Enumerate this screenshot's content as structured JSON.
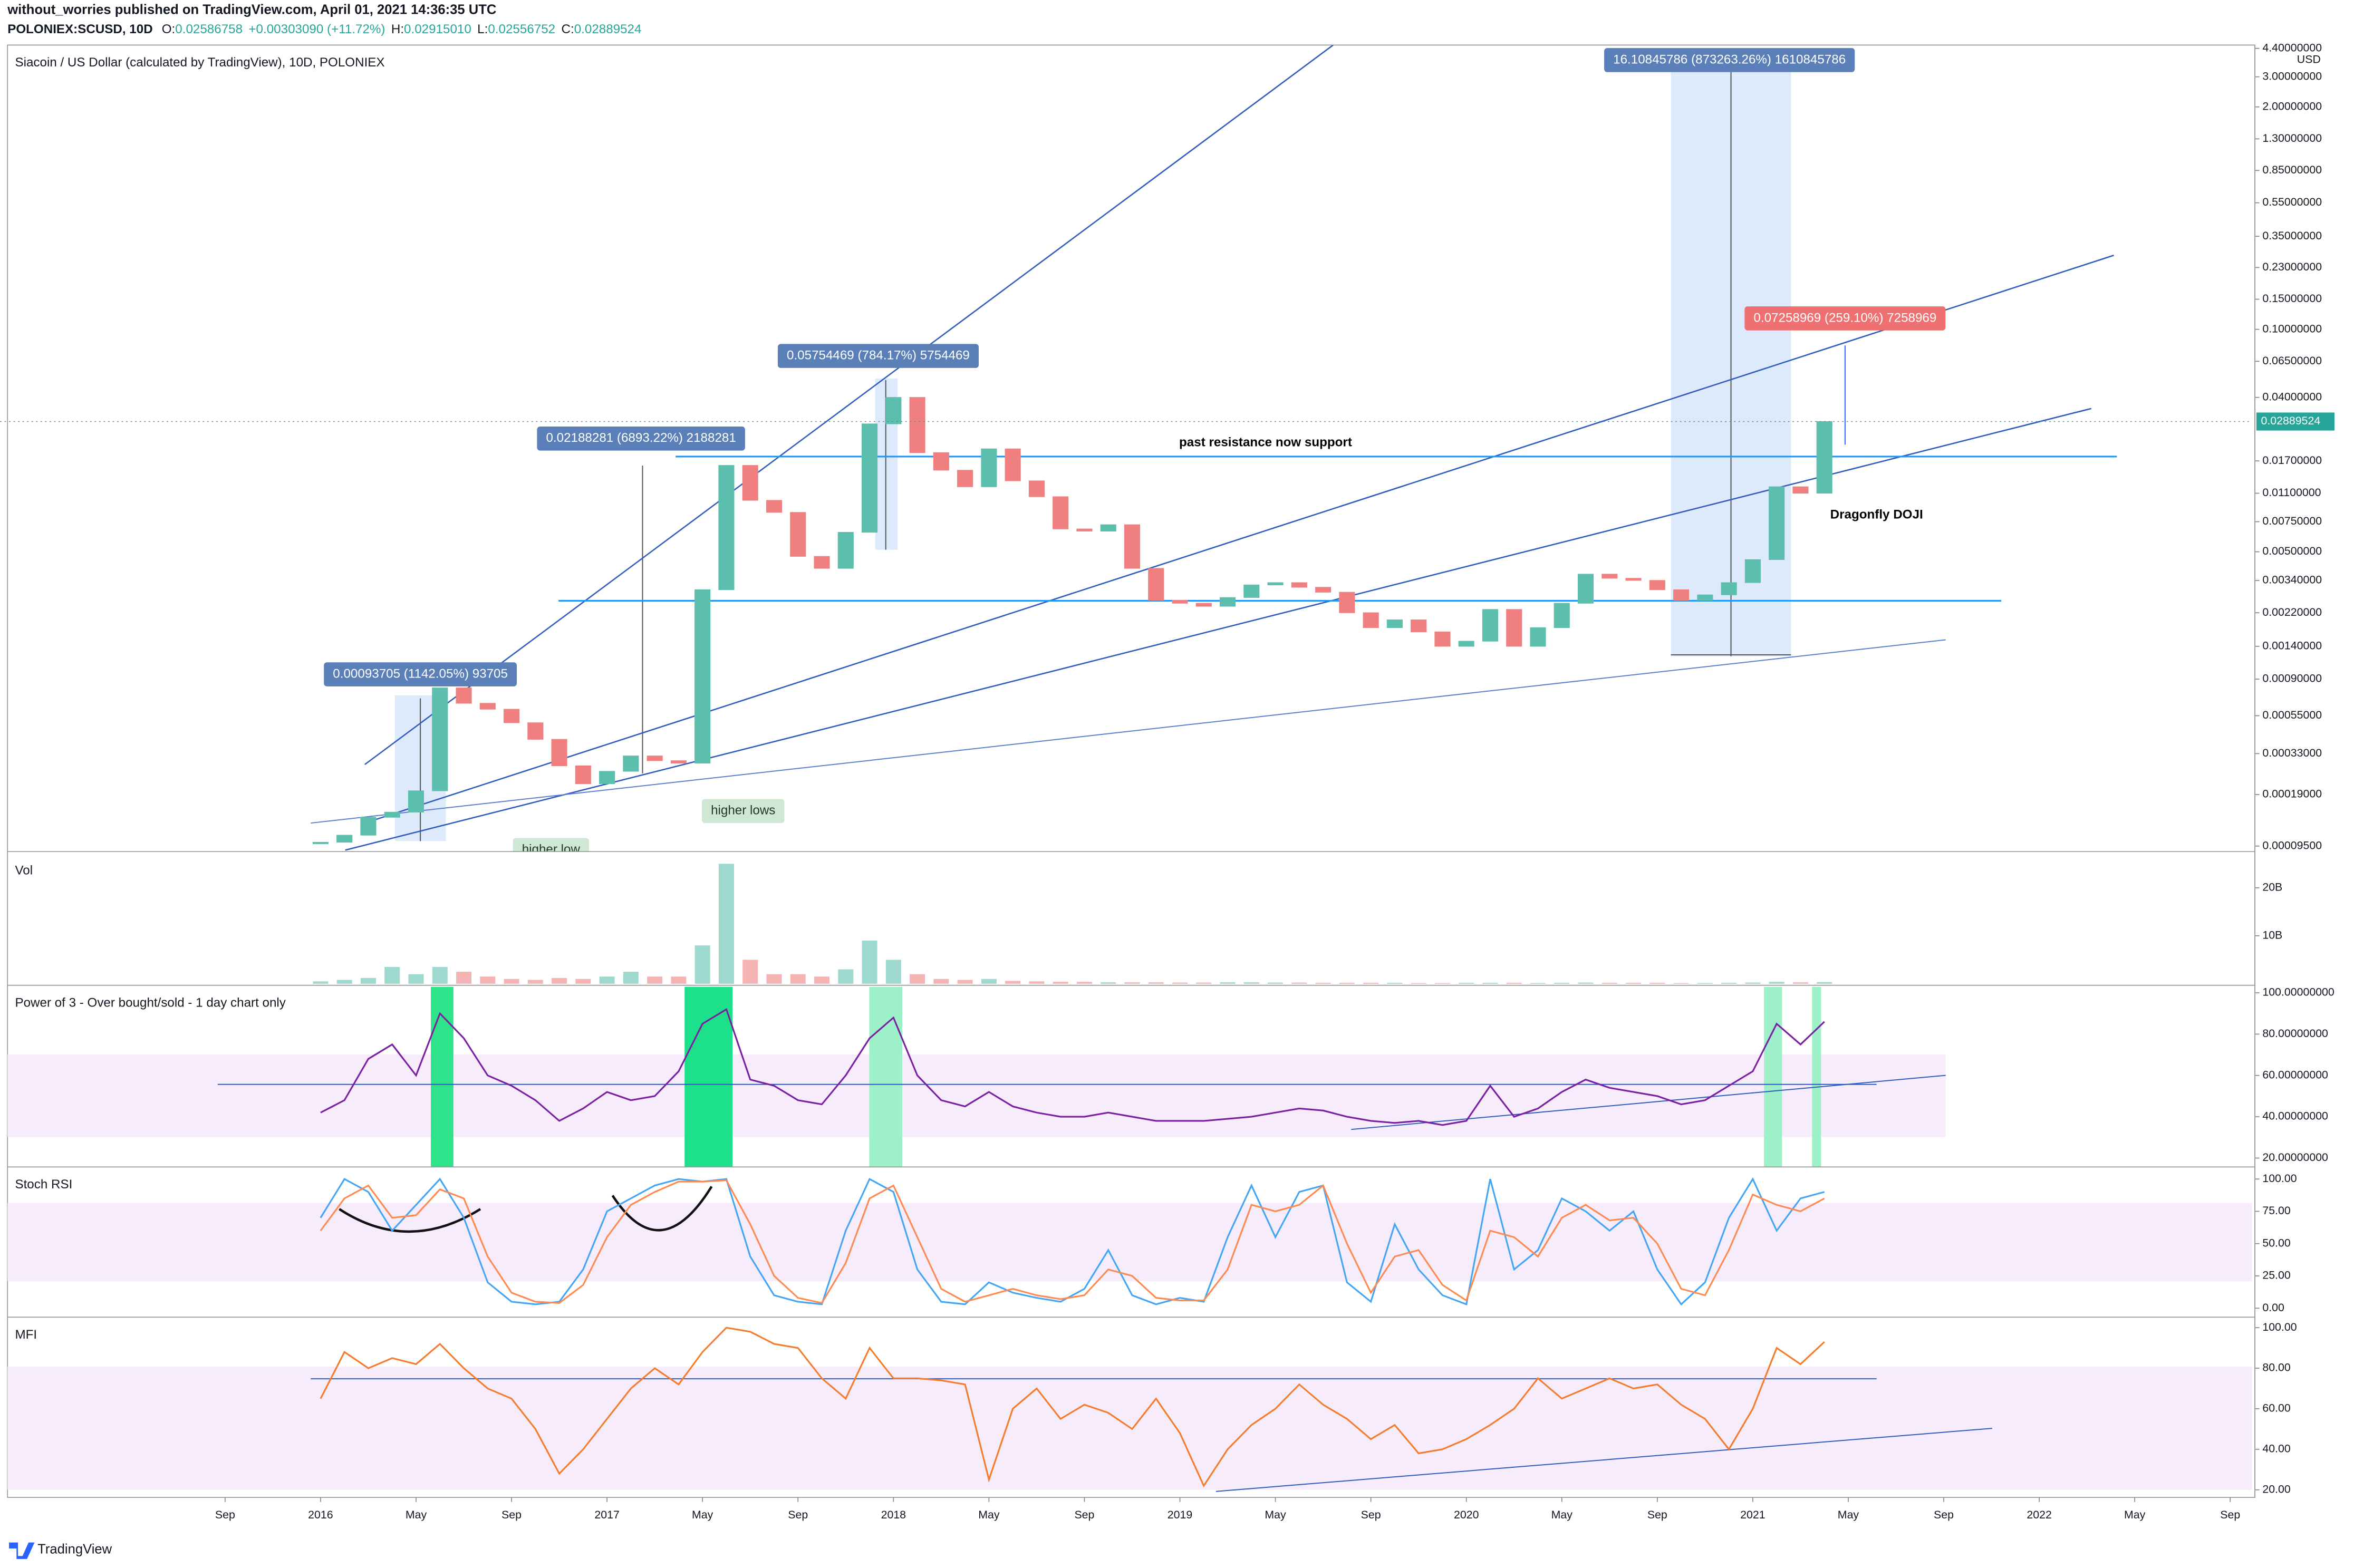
{
  "header": {
    "author_line": "without_worries published on TradingView.com, April 01, 2021 14:36:35 UTC",
    "symbol": "POLONIEX:SCUSD, 10D",
    "quote": [
      "O:",
      "0.02586758",
      "+0.00303090 (+11.72%)",
      "H:",
      "0.02915010",
      "L:",
      "0.02556752",
      "C:",
      "0.02889524"
    ]
  },
  "footer": {
    "brand": "TradingView"
  },
  "chart_data": [
    {
      "type": "candlestick",
      "title": "Siacoin / US Dollar (calculated by TradingView), 10D, POLONIEX",
      "y_unit": "USD",
      "color_up": "#5cbfae",
      "color_down": "#f08080",
      "log_scale": true,
      "grid": false,
      "x": [
        4,
        5,
        6,
        7,
        8,
        9,
        10,
        11,
        12,
        13,
        14,
        15,
        16,
        17,
        18,
        19,
        20,
        21,
        22,
        23,
        24,
        25,
        26,
        27,
        28,
        29,
        30,
        31,
        32,
        33,
        34,
        35,
        36,
        37,
        38,
        39,
        40,
        41,
        42,
        43,
        44,
        45,
        46,
        47,
        48,
        49,
        50,
        51,
        52,
        53,
        54,
        55,
        56,
        57,
        58,
        59,
        60,
        61,
        62,
        63,
        64,
        65,
        66,
        67
      ],
      "values": [
        0.0001,
        0.00011,
        0.00014,
        0.00015,
        0.0002,
        0.0008,
        0.00065,
        0.0006,
        0.0005,
        0.0004,
        0.00028,
        0.00022,
        0.00026,
        0.00032,
        0.0003,
        0.00029,
        0.003,
        0.016,
        0.01,
        0.0085,
        0.0047,
        0.004,
        0.0065,
        0.028,
        0.04,
        0.019,
        0.015,
        0.012,
        0.02,
        0.013,
        0.0105,
        0.0068,
        0.0066,
        0.0072,
        0.004,
        0.0026,
        0.0025,
        0.0024,
        0.0027,
        0.0032,
        0.0033,
        0.0031,
        0.0029,
        0.0022,
        0.0018,
        0.002,
        0.0017,
        0.0014,
        0.0015,
        0.0023,
        0.0014,
        0.0018,
        0.0025,
        0.0037,
        0.0035,
        0.0034,
        0.003,
        0.0026,
        0.0028,
        0.0033,
        0.0045,
        0.012,
        0.011,
        0.02889524
      ],
      "ylim": [
        9e-05,
        4.6
      ],
      "yticks": [
        {
          "value": 4.4,
          "label": "4.40000000"
        },
        {
          "value": 3,
          "label": "3.00000000"
        },
        {
          "value": 2,
          "label": "2.00000000"
        },
        {
          "value": 1.3,
          "label": "1.30000000"
        },
        {
          "value": 0.85,
          "label": "0.85000000"
        },
        {
          "value": 0.55,
          "label": "0.55000000"
        },
        {
          "value": 0.35,
          "label": "0.35000000"
        },
        {
          "value": 0.23,
          "label": "0.23000000"
        },
        {
          "value": 0.15,
          "label": "0.15000000"
        },
        {
          "value": 0.1,
          "label": "0.10000000"
        },
        {
          "value": 0.065,
          "label": "0.06500000"
        },
        {
          "value": 0.04,
          "label": "0.04000000"
        },
        {
          "value": 0.017,
          "label": "0.01700000"
        },
        {
          "value": 0.011,
          "label": "0.01100000"
        },
        {
          "value": 0.0075,
          "label": "0.00750000"
        },
        {
          "value": 0.005,
          "label": "0.00500000"
        },
        {
          "value": 0.0034,
          "label": "0.00340000"
        },
        {
          "value": 0.0022,
          "label": "0.00220000"
        },
        {
          "value": 0.0014,
          "label": "0.00140000"
        },
        {
          "value": 0.0009,
          "label": "0.00090000"
        },
        {
          "value": 0.00055,
          "label": "0.00055000"
        },
        {
          "value": 0.00033,
          "label": "0.00033000"
        },
        {
          "value": 0.00019,
          "label": "0.00019000"
        },
        {
          "value": 9.5e-05,
          "label": "0.00009500"
        }
      ],
      "annotations": [
        "16.10845786 (873263.26%) 1610845786",
        "0.07258969 (259.10%) 7258969",
        "0.05754469 (784.17%) 5754469",
        "0.02188281 (6893.22%) 2188281",
        "0.00093705 (1142.05%) 93705",
        "past resistance now support",
        "Dragonfly DOJI",
        "higher lows",
        "higher low"
      ]
    },
    {
      "type": "bar",
      "title": "Vol",
      "x": [
        4,
        5,
        6,
        7,
        8,
        9,
        10,
        11,
        12,
        13,
        14,
        15,
        16,
        17,
        18,
        19,
        20,
        21,
        22,
        23,
        24,
        25,
        26,
        27,
        28,
        29,
        30,
        31,
        32,
        33,
        34,
        35,
        36,
        37,
        38,
        39,
        40,
        41,
        42,
        43,
        44,
        45,
        46,
        47,
        48,
        49,
        50,
        51,
        52,
        53,
        54,
        55,
        56,
        57,
        58,
        59,
        60,
        61,
        62,
        63,
        64,
        65,
        66,
        67
      ],
      "values": [
        500000000,
        800000000,
        1200000000,
        3500000000,
        2000000000,
        3500000000,
        2500000000,
        1500000000,
        1000000000,
        800000000,
        1200000000,
        1000000000,
        1500000000,
        2500000000,
        1500000000,
        1500000000,
        8000000000,
        25000000000,
        5000000000,
        2000000000,
        2000000000,
        1500000000,
        3000000000,
        9000000000,
        5000000000,
        2000000000,
        1000000000,
        800000000,
        1000000000,
        600000000,
        500000000,
        400000000,
        400000000,
        300000000,
        300000000,
        300000000,
        250000000,
        250000000,
        300000000,
        300000000,
        250000000,
        250000000,
        200000000,
        200000000,
        200000000,
        200000000,
        150000000,
        150000000,
        200000000,
        200000000,
        200000000,
        150000000,
        200000000,
        250000000,
        200000000,
        200000000,
        200000000,
        150000000,
        150000000,
        200000000,
        250000000,
        400000000,
        300000000,
        350000000
      ],
      "ylim": [
        0,
        26600000000
      ],
      "yticks": [
        {
          "value": 20000000000,
          "label": "20B"
        },
        {
          "value": 10000000000,
          "label": "10B"
        }
      ]
    },
    {
      "type": "line",
      "title": "Power of 3 - Over bought/sold - 1 day chart only",
      "x": [
        4,
        5,
        6,
        7,
        8,
        9,
        10,
        11,
        12,
        13,
        14,
        15,
        16,
        17,
        18,
        19,
        20,
        21,
        22,
        23,
        24,
        25,
        26,
        27,
        28,
        29,
        30,
        31,
        32,
        33,
        34,
        35,
        36,
        37,
        38,
        39,
        40,
        41,
        42,
        43,
        44,
        45,
        46,
        47,
        48,
        49,
        50,
        51,
        52,
        53,
        54,
        55,
        56,
        57,
        58,
        59,
        60,
        61,
        62,
        63,
        64,
        65,
        66,
        67
      ],
      "series": [
        {
          "color": "#7b1fa2",
          "values": [
            42,
            48,
            68,
            75,
            60,
            90,
            78,
            60,
            55,
            48,
            38,
            44,
            52,
            48,
            50,
            62,
            85,
            92,
            58,
            55,
            48,
            46,
            60,
            78,
            88,
            60,
            48,
            45,
            52,
            45,
            42,
            40,
            40,
            42,
            40,
            38,
            38,
            38,
            39,
            40,
            42,
            44,
            43,
            40,
            38,
            37,
            38,
            36,
            38,
            55,
            40,
            44,
            52,
            58,
            54,
            52,
            50,
            46,
            48,
            55,
            62,
            85,
            75,
            86
          ]
        }
      ],
      "ylim": [
        16.4,
        102.2
      ],
      "yticks": [
        {
          "value": 100,
          "label": "100.00000000"
        },
        {
          "value": 80,
          "label": "80.00000000"
        },
        {
          "value": 60,
          "label": "60.00000000"
        },
        {
          "value": 40,
          "label": "40.00000000"
        },
        {
          "value": 20,
          "label": "20.00000000"
        }
      ]
    },
    {
      "type": "line",
      "title": "Stoch RSI",
      "x": [
        4,
        5,
        6,
        7,
        8,
        9,
        10,
        11,
        12,
        13,
        14,
        15,
        16,
        17,
        18,
        19,
        20,
        21,
        22,
        23,
        24,
        25,
        26,
        27,
        28,
        29,
        30,
        31,
        32,
        33,
        34,
        35,
        36,
        37,
        38,
        39,
        40,
        41,
        42,
        43,
        44,
        45,
        46,
        47,
        48,
        49,
        50,
        51,
        52,
        53,
        54,
        55,
        56,
        57,
        58,
        59,
        60,
        61,
        62,
        63,
        64,
        65,
        66,
        67
      ],
      "series": [
        {
          "color": "#42a5f5",
          "values": [
            70,
            100,
            90,
            60,
            80,
            100,
            70,
            20,
            5,
            3,
            5,
            30,
            75,
            85,
            95,
            100,
            98,
            100,
            40,
            10,
            5,
            3,
            60,
            100,
            90,
            30,
            5,
            3,
            20,
            12,
            8,
            5,
            15,
            45,
            10,
            3,
            8,
            5,
            55,
            95,
            55,
            90,
            95,
            20,
            5,
            65,
            30,
            10,
            3,
            100,
            30,
            45,
            85,
            75,
            60,
            75,
            30,
            3,
            20,
            70,
            100,
            60,
            85,
            90
          ]
        },
        {
          "color": "#ff8a50",
          "values": [
            60,
            85,
            95,
            70,
            72,
            92,
            85,
            40,
            12,
            5,
            4,
            18,
            55,
            80,
            90,
            98,
            98,
            99,
            65,
            25,
            8,
            4,
            35,
            85,
            95,
            55,
            15,
            5,
            10,
            15,
            10,
            7,
            10,
            30,
            25,
            8,
            6,
            6,
            30,
            80,
            75,
            80,
            95,
            50,
            12,
            40,
            45,
            18,
            6,
            60,
            55,
            40,
            70,
            80,
            68,
            70,
            50,
            15,
            10,
            45,
            88,
            80,
            75,
            85
          ]
        }
      ],
      "ylim": [
        -5.8,
        107
      ],
      "yticks": [
        {
          "value": 100,
          "label": "100.00"
        },
        {
          "value": 75,
          "label": "75.00"
        },
        {
          "value": 50,
          "label": "50.00"
        },
        {
          "value": 25,
          "label": "25.00"
        },
        {
          "value": 0,
          "label": "0.00"
        }
      ]
    },
    {
      "type": "line",
      "title": "MFI",
      "x": [
        4,
        5,
        6,
        7,
        8,
        9,
        10,
        11,
        12,
        13,
        14,
        15,
        16,
        17,
        18,
        19,
        20,
        21,
        22,
        23,
        24,
        25,
        26,
        27,
        28,
        29,
        30,
        31,
        32,
        33,
        34,
        35,
        36,
        37,
        38,
        39,
        40,
        41,
        42,
        43,
        44,
        45,
        46,
        47,
        48,
        49,
        50,
        51,
        52,
        53,
        54,
        55,
        56,
        57,
        58,
        59,
        60,
        61,
        62,
        63,
        64,
        65,
        66,
        67
      ],
      "series": [
        {
          "color": "#f57c2c",
          "values": [
            65,
            88,
            80,
            85,
            82,
            92,
            80,
            70,
            65,
            50,
            28,
            40,
            55,
            70,
            80,
            72,
            88,
            100,
            98,
            92,
            90,
            75,
            65,
            90,
            75,
            75,
            74,
            72,
            25,
            60,
            70,
            55,
            62,
            58,
            50,
            65,
            48,
            22,
            40,
            52,
            60,
            72,
            62,
            55,
            45,
            52,
            38,
            40,
            45,
            52,
            60,
            75,
            65,
            70,
            75,
            70,
            72,
            62,
            55,
            40,
            60,
            90,
            82,
            93
          ]
        }
      ],
      "ylim": [
        17,
        103.7
      ],
      "yticks": [
        {
          "value": 100,
          "label": "100.00"
        },
        {
          "value": 80,
          "label": "80.00"
        },
        {
          "value": 60,
          "label": "60.00"
        },
        {
          "value": 40,
          "label": "40.00"
        },
        {
          "value": 20,
          "label": "20.00"
        }
      ],
      "xlim": [
        -9.43,
        84.91
      ],
      "xticks": [
        {
          "value": 0,
          "label": "Sep"
        },
        {
          "value": 4,
          "label": "2016"
        },
        {
          "value": 8,
          "label": "May"
        },
        {
          "value": 12,
          "label": "Sep"
        },
        {
          "value": 16,
          "label": "2017"
        },
        {
          "value": 20,
          "label": "May"
        },
        {
          "value": 24,
          "label": "Sep"
        },
        {
          "value": 28,
          "label": "2018"
        },
        {
          "value": 32,
          "label": "May"
        },
        {
          "value": 36,
          "label": "Sep"
        },
        {
          "value": 40,
          "label": "2019"
        },
        {
          "value": 44,
          "label": "May"
        },
        {
          "value": 48,
          "label": "Sep"
        },
        {
          "value": 52,
          "label": "2020"
        },
        {
          "value": 56,
          "label": "May"
        },
        {
          "value": 60,
          "label": "Sep"
        },
        {
          "value": 64,
          "label": "2021"
        },
        {
          "value": 68,
          "label": "May"
        },
        {
          "value": 72,
          "label": "Sep"
        },
        {
          "value": 76,
          "label": "2022"
        },
        {
          "value": 80,
          "label": "May"
        },
        {
          "value": 84,
          "label": "Sep"
        }
      ]
    }
  ]
}
